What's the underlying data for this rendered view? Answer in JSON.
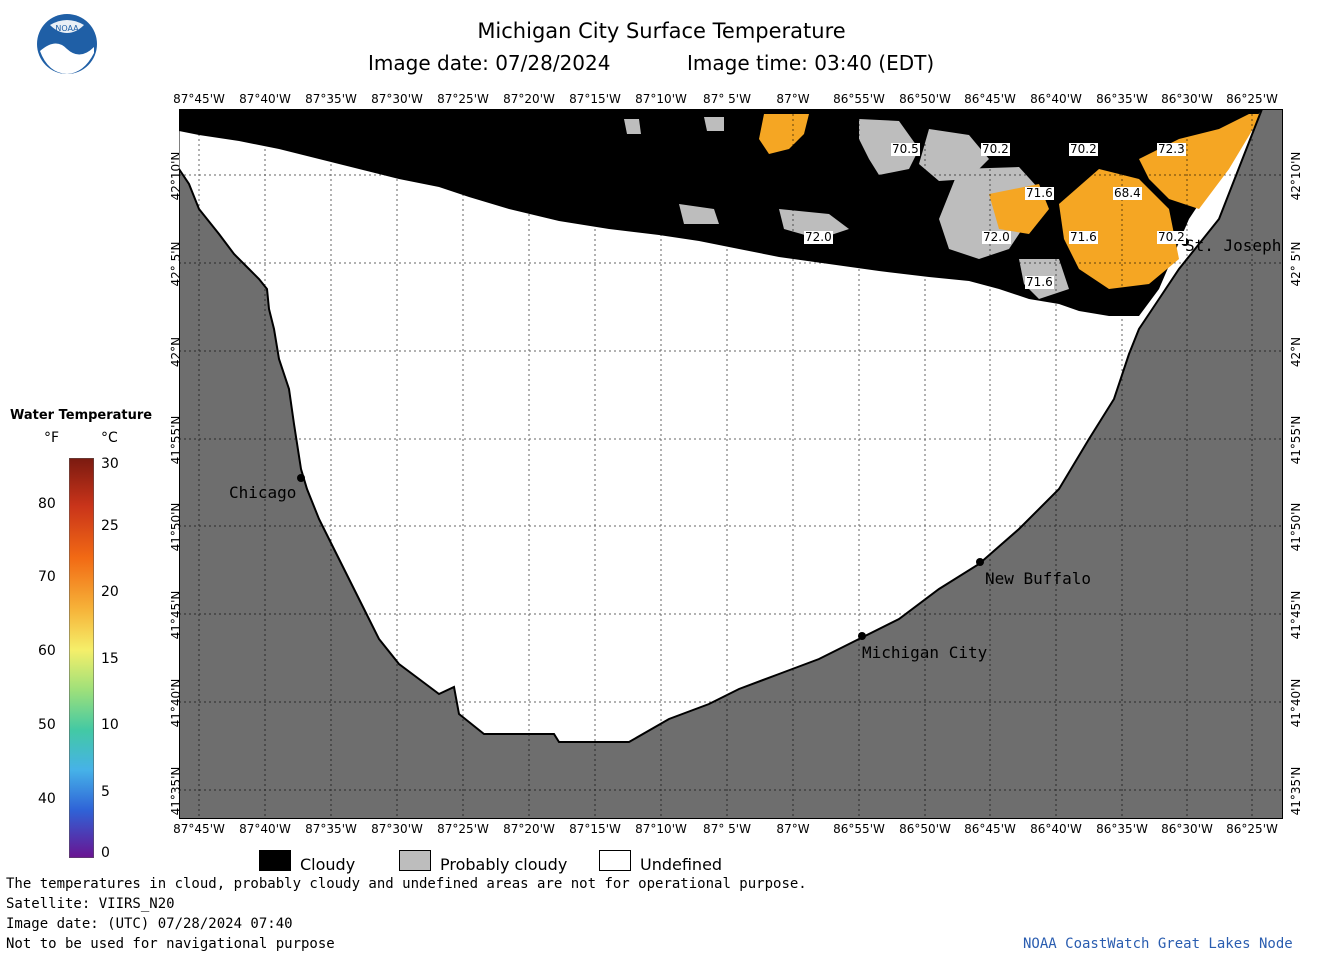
{
  "header": {
    "title": "Michigan City Surface Temperature",
    "image_date": "Image date: 07/28/2024",
    "image_time": "Image time: 03:40 (EDT)"
  },
  "axes": {
    "lon_labels": [
      "87°45'W",
      "87°40'W",
      "87°35'W",
      "87°30'W",
      "87°25'W",
      "87°20'W",
      "87°15'W",
      "87°10'W",
      "87° 5'W",
      "87°W",
      "86°55'W",
      "86°50'W",
      "86°45'W",
      "86°40'W",
      "86°35'W",
      "86°30'W",
      "86°25'W"
    ],
    "lat_labels": [
      "42°10'N",
      "42° 5'N",
      "42°N",
      "41°55'N",
      "41°50'N",
      "41°45'N",
      "41°40'N",
      "41°35'N"
    ]
  },
  "legend": {
    "title": "Water Temperature",
    "unit_f": "°F",
    "unit_c": "°C",
    "f_ticks": [
      "80",
      "70",
      "60",
      "50",
      "40"
    ],
    "c_ticks": [
      "30",
      "25",
      "20",
      "15",
      "10",
      "5",
      "0"
    ]
  },
  "key": {
    "cloudy": "Cloudy",
    "probably_cloudy": "Probably cloudy",
    "undefined": "Undefined"
  },
  "cities": {
    "chicago": "Chicago",
    "st_joseph": "St. Joseph",
    "new_buffalo": "New Buffalo",
    "michigan_city": "Michigan City"
  },
  "isotherms": [
    "70.5",
    "70.2",
    "70.2",
    "72.3",
    "71.6",
    "68.4",
    "72.0",
    "72.0",
    "71.6",
    "70.2",
    "71.6"
  ],
  "footer": {
    "note": "The temperatures in cloud, probably cloudy and undefined areas are not for operational purpose.",
    "satellite": "Satellite: VIIRS_N20",
    "utc_date": "Image date: (UTC) 07/28/2024  07:40",
    "nav": "Not to be used for navigational purpose",
    "credit": "NOAA CoastWatch Great Lakes Node"
  },
  "colors": {
    "land": "#6e6e6e",
    "cloud": "#000000",
    "probably_cloudy": "#bdbdbd",
    "water_warm": "#f5a623",
    "credit_link": "#2a5db0"
  }
}
